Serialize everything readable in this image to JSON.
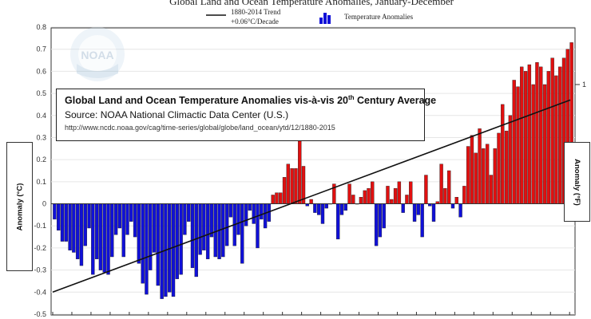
{
  "chart_data": {
    "type": "bar",
    "title": "Global Land and Ocean Temperature Anomalies, January-December",
    "legend": {
      "trend_label_line1": "1880-2014 Trend",
      "trend_label_line2": "+0.06°C/Decade",
      "bars_label": "Temperature Anomalies",
      "placement": "top"
    },
    "logo_text": "NOAA",
    "info_box": {
      "line1_main": "Global Land and Ocean Temperature Anomalies vis-à-vis 20",
      "line1_sup": "th",
      "line1_end": " Century Average",
      "line2": "Source: NOAA National Climactic Data Center (U.S.)",
      "line3": "http://www.ncdc.noaa.gov/cag/time-series/global/globe/land_ocean/ytd/12/1880-2015"
    },
    "ylabel": "Anomaly (°C)",
    "ylabel_right": "Anomaly (°F)",
    "ylim": [
      -0.5,
      0.8
    ],
    "yticks": [
      "0.8",
      "0.7",
      "0.6",
      "0.5",
      "0.4",
      "0.3",
      "0.2",
      "0.1",
      "0",
      "-0.1",
      "-0.2",
      "-0.3",
      "-0.4",
      "-0.5"
    ],
    "right_tick": "1",
    "grid": true,
    "x_start_year": 1880,
    "positive_color": "#e01010",
    "negative_color": "#1010d8",
    "trend": {
      "start": -0.4,
      "end": 0.47
    },
    "values": [
      -0.07,
      -0.12,
      -0.17,
      -0.17,
      -0.21,
      -0.22,
      -0.25,
      -0.28,
      -0.19,
      -0.11,
      -0.32,
      -0.25,
      -0.3,
      -0.31,
      -0.32,
      -0.24,
      -0.14,
      -0.11,
      -0.24,
      -0.14,
      -0.08,
      -0.15,
      -0.27,
      -0.36,
      -0.41,
      -0.3,
      -0.22,
      -0.37,
      -0.43,
      -0.42,
      -0.4,
      -0.42,
      -0.34,
      -0.32,
      -0.14,
      -0.08,
      -0.29,
      -0.33,
      -0.23,
      -0.21,
      -0.25,
      -0.15,
      -0.24,
      -0.25,
      -0.24,
      -0.19,
      -0.06,
      -0.19,
      -0.14,
      -0.27,
      -0.1,
      -0.03,
      -0.09,
      -0.2,
      -0.07,
      -0.11,
      -0.08,
      0.04,
      0.05,
      0.05,
      0.12,
      0.18,
      0.16,
      0.16,
      0.29,
      0.17,
      -0.01,
      0.02,
      -0.04,
      -0.05,
      -0.09,
      -0.02,
      0.0,
      0.09,
      -0.16,
      -0.05,
      -0.03,
      0.09,
      0.04,
      0.0,
      0.03,
      0.06,
      0.07,
      0.1,
      -0.19,
      -0.15,
      -0.11,
      0.08,
      0.02,
      0.07,
      0.1,
      -0.04,
      0.04,
      0.1,
      -0.08,
      -0.05,
      -0.15,
      0.13,
      -0.01,
      -0.08,
      0.01,
      0.18,
      0.07,
      0.15,
      -0.02,
      0.03,
      -0.06,
      0.08,
      0.26,
      0.31,
      0.23,
      0.34,
      0.25,
      0.27,
      0.13,
      0.25,
      0.32,
      0.45,
      0.33,
      0.4,
      0.56,
      0.53,
      0.62,
      0.6,
      0.63,
      0.54,
      0.64,
      0.62,
      0.54,
      0.6,
      0.66,
      0.58,
      0.62,
      0.66,
      0.7,
      0.73
    ]
  }
}
